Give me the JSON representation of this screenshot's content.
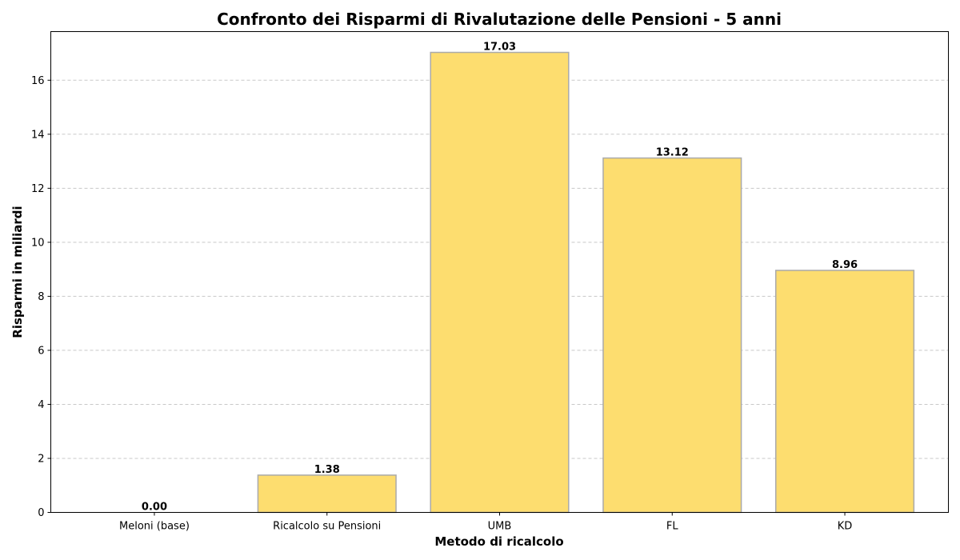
{
  "chart_data": {
    "type": "bar",
    "title": "Confronto dei Risparmi di Rivalutazione delle Pensioni - 5 anni",
    "xlabel": "Metodo di ricalcolo",
    "ylabel": "Risparmi in miliardi",
    "categories": [
      "Meloni (base)",
      "Ricalcolo su Pensioni",
      "UMB",
      "FL",
      "KD"
    ],
    "values": [
      0.0,
      1.38,
      17.03,
      13.12,
      8.96
    ],
    "value_labels": [
      "0.00",
      "1.38",
      "17.03",
      "13.12",
      "8.96"
    ],
    "ylim": [
      0,
      17.8
    ],
    "yticks": [
      0,
      2,
      4,
      6,
      8,
      10,
      12,
      14,
      16
    ],
    "grid": "y-dashed",
    "colors": {
      "bar_fill": "#fddd6f",
      "bar_edge": "#aaaaaa",
      "grid": "#c8c8c8"
    }
  }
}
